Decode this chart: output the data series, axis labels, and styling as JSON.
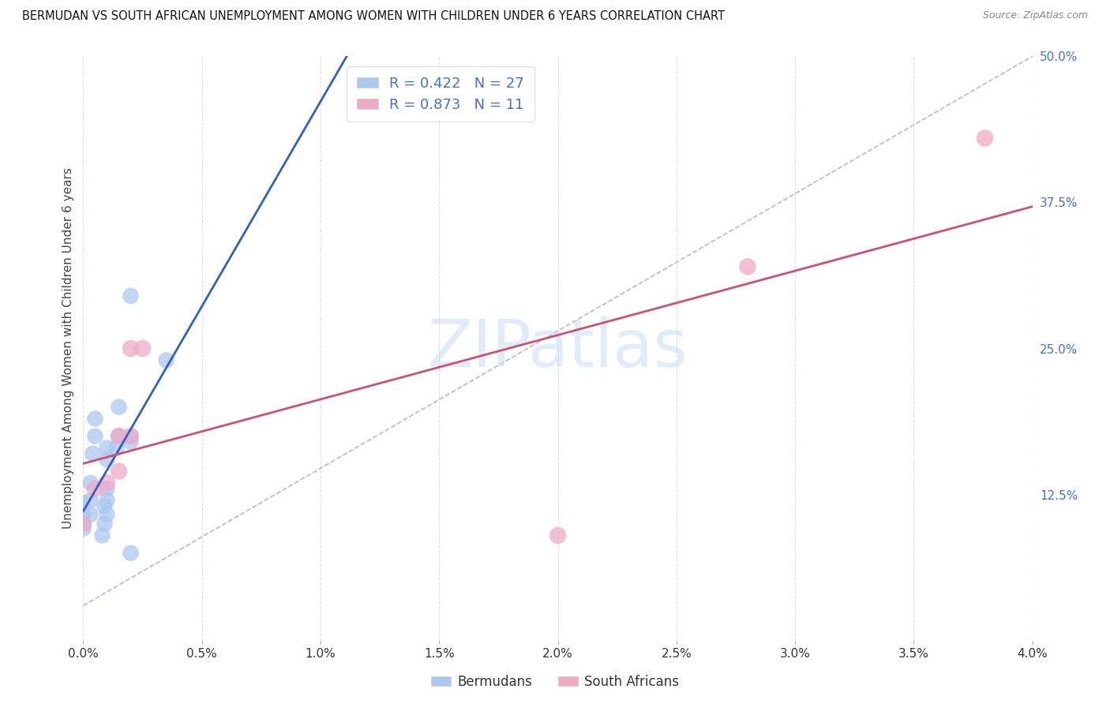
{
  "title": "BERMUDAN VS SOUTH AFRICAN UNEMPLOYMENT AMONG WOMEN WITH CHILDREN UNDER 6 YEARS CORRELATION CHART",
  "source": "Source: ZipAtlas.com",
  "ylabel": "Unemployment Among Women with Children Under 6 years",
  "watermark": "ZIPatlas",
  "legend_blue_R": "0.422",
  "legend_blue_N": "27",
  "legend_pink_R": "0.873",
  "legend_pink_N": "11",
  "blue_color": "#aac8f0",
  "pink_color": "#f0aac4",
  "blue_line_color": "#3060c0",
  "pink_line_color": "#d05070",
  "ref_line_color": "#aaaacc",
  "blue_scatter": [
    [
      0.0,
      0.108
    ],
    [
      0.0,
      0.118
    ],
    [
      0.0,
      0.108
    ],
    [
      0.0,
      0.1
    ],
    [
      0.0,
      0.096
    ],
    [
      0.0003,
      0.108
    ],
    [
      0.0003,
      0.12
    ],
    [
      0.0003,
      0.135
    ],
    [
      0.0004,
      0.16
    ],
    [
      0.0005,
      0.175
    ],
    [
      0.0005,
      0.19
    ],
    [
      0.0008,
      0.09
    ],
    [
      0.0009,
      0.115
    ],
    [
      0.0009,
      0.1
    ],
    [
      0.001,
      0.108
    ],
    [
      0.001,
      0.12
    ],
    [
      0.001,
      0.13
    ],
    [
      0.001,
      0.155
    ],
    [
      0.001,
      0.165
    ],
    [
      0.0014,
      0.165
    ],
    [
      0.0015,
      0.175
    ],
    [
      0.0015,
      0.2
    ],
    [
      0.002,
      0.175
    ],
    [
      0.002,
      0.17
    ],
    [
      0.002,
      0.075
    ],
    [
      0.002,
      0.295
    ],
    [
      0.0035,
      0.24
    ]
  ],
  "pink_scatter": [
    [
      0.0,
      0.1
    ],
    [
      0.0005,
      0.13
    ],
    [
      0.001,
      0.135
    ],
    [
      0.0015,
      0.145
    ],
    [
      0.0015,
      0.175
    ],
    [
      0.002,
      0.175
    ],
    [
      0.002,
      0.25
    ],
    [
      0.0025,
      0.25
    ],
    [
      0.02,
      0.09
    ],
    [
      0.028,
      0.32
    ],
    [
      0.038,
      0.43
    ]
  ],
  "xmin": 0.0,
  "xmax": 0.04,
  "ymin": 0.0,
  "ymax": 0.5,
  "yticks_right": [
    0.125,
    0.25,
    0.375,
    0.5
  ],
  "ytick_labels_right": [
    "12.5%",
    "25.0%",
    "37.5%",
    "50.0%"
  ],
  "xtick_vals": [
    0.0,
    0.005,
    0.01,
    0.015,
    0.02,
    0.025,
    0.03,
    0.035,
    0.04
  ],
  "xtick_labels": [
    "0.0%",
    "0.5%",
    "1.0%",
    "1.5%",
    "2.0%",
    "2.5%",
    "3.0%",
    "3.5%",
    "4.0%"
  ],
  "bg_color": "#ffffff",
  "grid_color": "#ddddee",
  "axis_label_color": "#4472c4",
  "title_color": "#111111"
}
